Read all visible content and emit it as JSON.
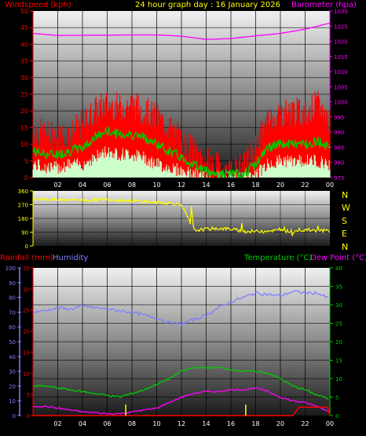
{
  "header": {
    "left_label": "Windspeed (kph)",
    "title": "24 hour graph day : 16 January 2026",
    "right_label": "Barometer (hpa)"
  },
  "labels": {
    "rainfall": "Rainfall (mm)",
    "humidity": "Humidity",
    "temperature": "Temperature (°C)",
    "dewpoint": "Dew Point (°C)"
  },
  "colors": {
    "windspeed": "#ff0000",
    "gust": "#ff0000",
    "average": "#00cc00",
    "lull": "#ccffcc",
    "barometer": "#ff00ff",
    "direction": "#ffff00",
    "humidity": "#7f7fff",
    "temperature": "#00cc00",
    "dewpoint": "#ff00ff",
    "rainfall": "#ff0000",
    "rain_rate": "#ffff00",
    "header_left": "#ff0000",
    "header_title": "#ffff00",
    "header_right": "#ff00ff",
    "left_axis2": "#ffff00",
    "axis_rain": "#ff0000",
    "axis_humidity": "#7f7fff",
    "axis_temp": "#00cc00",
    "axis_dew": "#ff00ff"
  },
  "chart_data": [
    {
      "type": "line",
      "panel": "wind-barometer",
      "x_ticks": [
        "02",
        "04",
        "06",
        "08",
        "10",
        "12",
        "14",
        "16",
        "18",
        "20",
        "22",
        "00"
      ],
      "left_axis": {
        "label": "Windspeed (kph)",
        "ticks": [
          0,
          5,
          10,
          15,
          20,
          25,
          30,
          35,
          40,
          45,
          50
        ],
        "ylim": [
          0,
          50
        ]
      },
      "right_axis": {
        "label": "Barometer (hpa)",
        "ticks": [
          975,
          980,
          985,
          990,
          995,
          1000,
          1005,
          1010,
          1015,
          1020,
          1025,
          1030
        ],
        "ylim": [
          975,
          1030
        ]
      },
      "series": [
        {
          "name": "Windspeed (kph)",
          "role": "gust",
          "x": [
            0,
            1,
            2,
            3,
            4,
            5,
            6,
            7,
            8,
            9,
            10,
            11,
            12,
            13,
            14,
            15,
            16,
            17,
            18,
            19,
            20,
            21,
            22,
            23,
            24
          ],
          "values": [
            14,
            13,
            12,
            13,
            16,
            20,
            22,
            21,
            22,
            20,
            18,
            15,
            11,
            8,
            5,
            3,
            2,
            3,
            9,
            17,
            19,
            20,
            19,
            22,
            17
          ]
        },
        {
          "name": "Average",
          "role": "avg",
          "x": [
            0,
            1,
            2,
            3,
            4,
            5,
            6,
            7,
            8,
            9,
            10,
            11,
            12,
            13,
            14,
            15,
            16,
            17,
            18,
            19,
            20,
            21,
            22,
            23,
            24
          ],
          "values": [
            8,
            7,
            7,
            8,
            9,
            12,
            14,
            13,
            13,
            12,
            10,
            8,
            6,
            4,
            2,
            1,
            1,
            1,
            4,
            9,
            10,
            10,
            10,
            11,
            9
          ]
        },
        {
          "name": "Lull",
          "role": "lull",
          "x": [
            0,
            1,
            2,
            3,
            4,
            5,
            6,
            7,
            8,
            9,
            10,
            11,
            12,
            13,
            14,
            15,
            16,
            17,
            18,
            19,
            20,
            21,
            22,
            23,
            24
          ],
          "values": [
            4,
            3,
            3,
            4,
            4,
            6,
            8,
            7,
            7,
            6,
            4,
            3,
            2,
            1,
            0,
            0,
            0,
            0,
            1,
            4,
            5,
            5,
            5,
            5,
            4
          ]
        },
        {
          "name": "Barometer (hpa)",
          "role": "baro",
          "x": [
            0,
            2,
            4,
            6,
            8,
            10,
            12,
            14,
            16,
            18,
            20,
            22,
            24
          ],
          "values": [
            1022.6,
            1021.9,
            1022.0,
            1022.0,
            1022.1,
            1022.1,
            1021.7,
            1020.6,
            1020.9,
            1021.8,
            1022.6,
            1024.0,
            1026.0
          ]
        }
      ]
    },
    {
      "type": "scatter",
      "panel": "wind-direction",
      "x_ticks": [],
      "left_axis": {
        "ticks": [
          0,
          90,
          180,
          270,
          360
        ],
        "ylim": [
          0,
          360
        ]
      },
      "right_axis": {
        "ticks": [
          "N",
          "W",
          "S",
          "E",
          "N"
        ]
      },
      "series": [
        {
          "name": "Wind direction",
          "x": [
            0,
            1,
            2,
            3,
            4,
            5,
            6,
            7,
            8,
            9,
            10,
            11,
            12,
            13,
            14,
            15,
            16,
            17,
            18,
            19,
            20,
            21,
            22,
            23,
            24
          ],
          "values": [
            310,
            305,
            300,
            305,
            300,
            300,
            305,
            300,
            295,
            290,
            285,
            280,
            270,
            100,
            110,
            115,
            110,
            95,
            95,
            100,
            100,
            95,
            105,
            100,
            100
          ]
        }
      ]
    },
    {
      "type": "line",
      "panel": "rain-humidity-temp",
      "x_ticks": [
        "02",
        "04",
        "06",
        "08",
        "10",
        "12",
        "14",
        "16",
        "18",
        "20",
        "22",
        "00"
      ],
      "left_axis_rain": {
        "label": "Rainfall (mm)",
        "ticks": [
          0,
          5,
          10,
          15,
          20,
          25,
          30,
          35
        ],
        "ylim": [
          0,
          35
        ]
      },
      "left_axis_humidity": {
        "label": "Humidity",
        "ticks": [
          0,
          10,
          20,
          30,
          40,
          50,
          60,
          70,
          80,
          90,
          100
        ],
        "ylim": [
          0,
          100
        ]
      },
      "right_axis": {
        "label": "Temperature (°C)",
        "ticks": [
          0,
          5,
          10,
          15,
          20,
          25,
          30,
          35,
          40
        ],
        "ylim": [
          0,
          40
        ]
      },
      "series": [
        {
          "name": "Humidity",
          "x": [
            0,
            1,
            2,
            3,
            4,
            5,
            6,
            7,
            8,
            9,
            10,
            11,
            12,
            13,
            14,
            15,
            16,
            17,
            18,
            19,
            20,
            21,
            22,
            23,
            24
          ],
          "values": [
            70,
            71,
            73,
            72,
            74,
            73,
            72,
            71,
            70,
            68,
            66,
            63,
            62,
            65,
            68,
            73,
            77,
            80,
            83,
            82,
            81,
            84,
            83,
            83,
            79
          ]
        },
        {
          "name": "Temperature (°C)",
          "x": [
            0,
            1,
            2,
            3,
            4,
            5,
            6,
            7,
            8,
            9,
            10,
            11,
            12,
            13,
            14,
            15,
            16,
            17,
            18,
            19,
            20,
            21,
            22,
            23,
            24
          ],
          "values": [
            8,
            8,
            7.5,
            7,
            6.5,
            6,
            5.5,
            5,
            6,
            7,
            8.5,
            10,
            12,
            13,
            13,
            13,
            12.5,
            12,
            12,
            11.5,
            10,
            8,
            7,
            5.5,
            4.5
          ]
        },
        {
          "name": "Dew Point (°C)",
          "x": [
            0,
            1,
            2,
            3,
            4,
            5,
            6,
            7,
            8,
            9,
            10,
            11,
            12,
            13,
            14,
            15,
            16,
            17,
            18,
            19,
            20,
            21,
            22,
            23,
            24
          ],
          "values": [
            2.5,
            2.5,
            2,
            1.5,
            1,
            0.8,
            0.5,
            0.5,
            1,
            1.5,
            2,
            3.5,
            5,
            6,
            6.5,
            6.5,
            7,
            7,
            7.5,
            6.5,
            5,
            4,
            3.5,
            2.5,
            1
          ]
        },
        {
          "name": "Rainfall (mm)",
          "x": [
            0,
            21,
            21.5,
            23.8,
            24
          ],
          "values": [
            0,
            0,
            2,
            2,
            0
          ]
        }
      ],
      "rain_rate_spikes": [
        7.5,
        17.2
      ]
    }
  ]
}
